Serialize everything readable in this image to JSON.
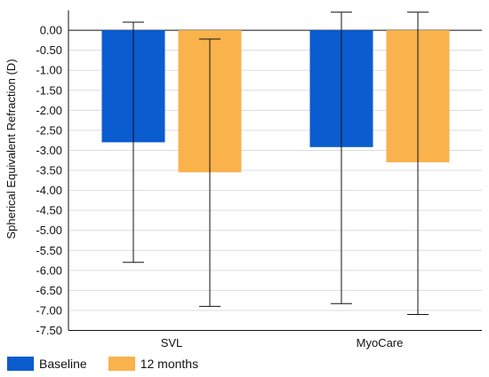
{
  "chart_data": {
    "type": "bar",
    "title": "",
    "xlabel": "",
    "ylabel": "Spherical Equivalent Refraction (D)",
    "ylim": [
      -7.5,
      0.5
    ],
    "yticks": [
      "0.00",
      "-0.50",
      "-1.00",
      "-1.50",
      "-2.00",
      "-2.50",
      "-3.00",
      "-3.50",
      "-4.00",
      "-4.50",
      "-5.00",
      "-5.50",
      "-6.00",
      "-6.50",
      "-7.00",
      "-7.50"
    ],
    "grid": true,
    "legend_position": "bottom-left",
    "categories": [
      "SVL",
      "MyoCare"
    ],
    "series": [
      {
        "name": "Baseline",
        "color": "#0b5ccf",
        "values": [
          -2.8,
          -2.92
        ],
        "error_low": [
          -5.8,
          -6.83
        ],
        "error_high": [
          0.2,
          0.45
        ]
      },
      {
        "name": "12 months",
        "color": "#f9b24c",
        "values": [
          -3.55,
          -3.3
        ],
        "error_low": [
          -6.9,
          -7.1
        ],
        "error_high": [
          -0.22,
          0.45
        ]
      }
    ]
  }
}
